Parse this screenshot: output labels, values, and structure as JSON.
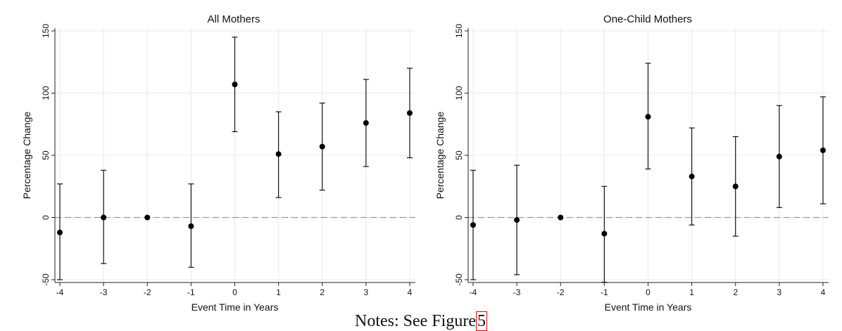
{
  "notes": {
    "text": "Notes: See Figure",
    "ref": "5"
  },
  "chart_data": [
    {
      "type": "scatter",
      "title": "All Mothers",
      "xlabel": "Event Time in Years",
      "ylabel": "Percentage Change",
      "xlim": [
        -4,
        4
      ],
      "ylim": [
        -50,
        150
      ],
      "x_ticks": [
        "-4",
        "-3",
        "-2",
        "-1",
        "0",
        "1",
        "2",
        "3",
        "4"
      ],
      "y_ticks": [
        "-50",
        "0",
        "50",
        "100",
        "150"
      ],
      "grid": true,
      "reference_line": 0,
      "points": [
        {
          "x": -4,
          "y": -12,
          "lo": -50,
          "hi": 27
        },
        {
          "x": -3,
          "y": 0,
          "lo": -37,
          "hi": 38
        },
        {
          "x": -2,
          "y": 0,
          "lo": 0,
          "hi": 0
        },
        {
          "x": -1,
          "y": -7,
          "lo": -40,
          "hi": 27
        },
        {
          "x": 0,
          "y": 107,
          "lo": 69,
          "hi": 145
        },
        {
          "x": 1,
          "y": 51,
          "lo": 16,
          "hi": 85
        },
        {
          "x": 2,
          "y": 57,
          "lo": 22,
          "hi": 92
        },
        {
          "x": 3,
          "y": 76,
          "lo": 41,
          "hi": 111
        },
        {
          "x": 4,
          "y": 84,
          "lo": 48,
          "hi": 120
        }
      ]
    },
    {
      "type": "scatter",
      "title": "One-Child Mothers",
      "xlabel": "Event Time in Years",
      "ylabel": "Percentage Change",
      "xlim": [
        -4,
        4
      ],
      "ylim": [
        -50,
        150
      ],
      "x_ticks": [
        "-4",
        "-3",
        "-2",
        "-1",
        "0",
        "1",
        "2",
        "3",
        "4"
      ],
      "y_ticks": [
        "-50",
        "0",
        "50",
        "100",
        "150"
      ],
      "grid": true,
      "reference_line": 0,
      "points": [
        {
          "x": -4,
          "y": -6,
          "lo": -50,
          "hi": 38
        },
        {
          "x": -3,
          "y": -2,
          "lo": -46,
          "hi": 42
        },
        {
          "x": -2,
          "y": 0,
          "lo": 0,
          "hi": 0
        },
        {
          "x": -1,
          "y": -13,
          "lo": -52,
          "hi": 25
        },
        {
          "x": 0,
          "y": 81,
          "lo": 39,
          "hi": 124
        },
        {
          "x": 1,
          "y": 33,
          "lo": -6,
          "hi": 72
        },
        {
          "x": 2,
          "y": 25,
          "lo": -15,
          "hi": 65
        },
        {
          "x": 3,
          "y": 49,
          "lo": 8,
          "hi": 90
        },
        {
          "x": 4,
          "y": 54,
          "lo": 11,
          "hi": 97
        }
      ]
    }
  ]
}
